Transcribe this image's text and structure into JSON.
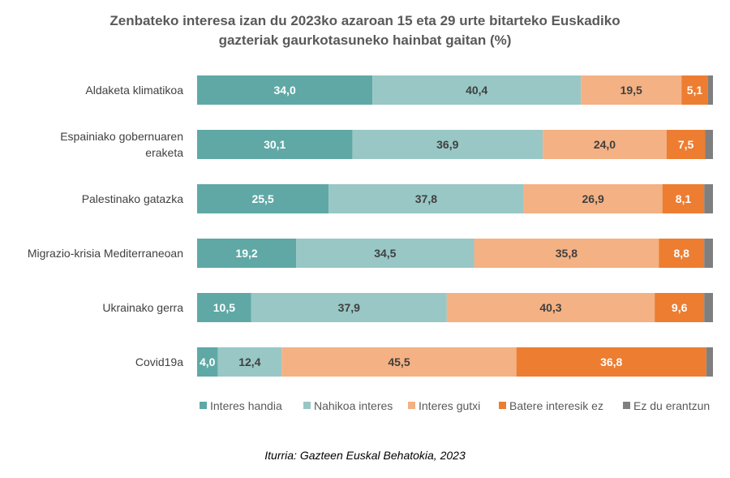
{
  "chart_data": {
    "type": "bar",
    "orientation": "horizontal",
    "stacked": true,
    "title_lines": [
      "Zenbateko interesa izan du 2023ko azaroan 15 eta 29 urte bitarteko Euskadiko",
      "gazteriak gaurkotasuneko hainbat gaitan (%)"
    ],
    "categories": [
      "Aldaketa klimatikoa",
      "Espainiako gobernuaren eraketa",
      "Palestinako gatazka",
      "Migrazio-krisia Mediterraneoan",
      "Ukrainako gerra",
      "Covid19a"
    ],
    "category_lines": [
      [
        "Aldaketa klimatikoa"
      ],
      [
        "Espainiako gobernuaren",
        "eraketa"
      ],
      [
        "Palestinako gatazka"
      ],
      [
        "Migrazio-krisia Mediterraneoan"
      ],
      [
        "Ukrainako gerra"
      ],
      [
        "Covid19a"
      ]
    ],
    "series": [
      {
        "name": "Interes handia",
        "color": "#5fa8a5",
        "label_color": "#ffffff",
        "values": [
          34.0,
          30.1,
          25.5,
          19.2,
          10.5,
          4.0
        ],
        "labels": [
          "34,0",
          "30,1",
          "25,5",
          "19,2",
          "10,5",
          "4,0"
        ]
      },
      {
        "name": "Nahikoa interes",
        "color": "#98c7c5",
        "label_color": "#404040",
        "values": [
          40.4,
          36.9,
          37.8,
          34.5,
          37.9,
          12.4
        ],
        "labels": [
          "40,4",
          "36,9",
          "37,8",
          "34,5",
          "37,9",
          "12,4"
        ]
      },
      {
        "name": "Interes gutxi",
        "color": "#f4b183",
        "label_color": "#404040",
        "values": [
          19.5,
          24.0,
          26.9,
          35.8,
          40.3,
          45.5
        ],
        "labels": [
          "19,5",
          "24,0",
          "26,9",
          "35,8",
          "40,3",
          "45,5"
        ]
      },
      {
        "name": "Batere interesik ez",
        "color": "#ed7d31",
        "label_color": "#ffffff",
        "values": [
          5.1,
          7.5,
          8.1,
          8.8,
          9.6,
          36.8
        ],
        "labels": [
          "5,1",
          "7,5",
          "8,1",
          "8,8",
          "9,6",
          "36,8"
        ]
      },
      {
        "name": "Ez du erantzun",
        "color": "#7f7f7f",
        "label_color": "#ffffff",
        "values": [
          1.0,
          1.5,
          1.7,
          1.7,
          1.7,
          1.3
        ],
        "labels": [
          "",
          "",
          "",
          "",
          "",
          ""
        ]
      }
    ],
    "xlim": [
      0,
      100
    ],
    "grid": false,
    "legend_position": "bottom",
    "source": "Iturria: Gazteen Euskal Behatokia, 2023"
  }
}
